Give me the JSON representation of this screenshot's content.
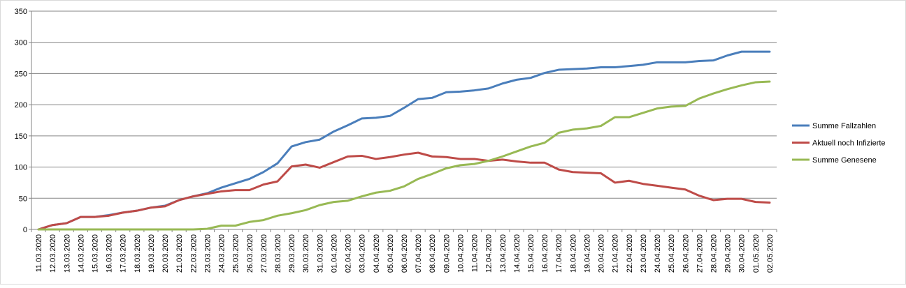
{
  "chart_data": {
    "type": "line",
    "title": "",
    "xlabel": "",
    "ylabel": "",
    "ylim": [
      0,
      350
    ],
    "yticks": [
      0,
      50,
      100,
      150,
      200,
      250,
      300,
      350
    ],
    "grid": "horizontal",
    "legend_position": "right",
    "categories": [
      "11.03.2020",
      "12.03.2020",
      "13.03.2020",
      "14.03.2020",
      "15.03.2020",
      "16.03.2020",
      "17.03.2020",
      "18.03.2020",
      "19.03.2020",
      "20.03.2020",
      "21.03.2020",
      "22.03.2020",
      "23.03.2020",
      "24.03.2020",
      "25.03.2020",
      "26.03.2020",
      "27.03.2020",
      "28.03.2020",
      "29.03.2020",
      "30.03.2020",
      "31.03.2020",
      "01.04.2020",
      "02.04.2020",
      "03.04.2020",
      "04.04.2020",
      "05.04.2020",
      "06.04.2020",
      "07.04.2020",
      "08.04.2020",
      "09.04.2020",
      "10.04.2020",
      "11.04.2020",
      "12.04.2020",
      "13.04.2020",
      "14.04.2020",
      "15.04.2020",
      "16.04.2020",
      "17.04.2020",
      "18.04.2020",
      "19.04.2020",
      "20.04.2020",
      "21.04.2020",
      "22.04.2020",
      "23.04.2020",
      "24.04.2020",
      "25.04.2020",
      "26.04.2020",
      "27.04.2020",
      "28.04.2020",
      "29.04.2020",
      "30.04.2020",
      "01.05.2020",
      "02.05.2020"
    ],
    "series": [
      {
        "name": "Summe Fallzahlen",
        "color": "#4a7ebb",
        "values": [
          0,
          7,
          10,
          20,
          20,
          23,
          27,
          30,
          35,
          38,
          47,
          53,
          58,
          67,
          74,
          81,
          92,
          106,
          133,
          140,
          144,
          157,
          167,
          178,
          179,
          182,
          195,
          209,
          211,
          220,
          221,
          223,
          226,
          234,
          240,
          243,
          251,
          256,
          257,
          258,
          260,
          260,
          262,
          264,
          268,
          268,
          268,
          270,
          271,
          279,
          285,
          285,
          285
        ]
      },
      {
        "name": "Aktuell noch Infizierte",
        "color": "#be4b48",
        "values": [
          0,
          7,
          10,
          20,
          20,
          22,
          27,
          30,
          35,
          37,
          47,
          53,
          57,
          61,
          63,
          63,
          72,
          77,
          101,
          104,
          99,
          108,
          117,
          118,
          113,
          116,
          120,
          123,
          117,
          116,
          113,
          113,
          110,
          112,
          109,
          107,
          107,
          96,
          92,
          91,
          90,
          75,
          78,
          73,
          70,
          67,
          64,
          54,
          47,
          49,
          49,
          44,
          43
        ]
      },
      {
        "name": "Summe Genesene",
        "color": "#98b954",
        "values": [
          0,
          0,
          0,
          0,
          0,
          0,
          0,
          0,
          0,
          0,
          0,
          0,
          1,
          6,
          6,
          12,
          15,
          22,
          26,
          31,
          39,
          44,
          46,
          53,
          59,
          62,
          69,
          81,
          89,
          98,
          103,
          105,
          110,
          117,
          125,
          133,
          139,
          155,
          160,
          162,
          166,
          180,
          180,
          187,
          194,
          197,
          198,
          210,
          218,
          225,
          231,
          236,
          237
        ]
      }
    ]
  }
}
